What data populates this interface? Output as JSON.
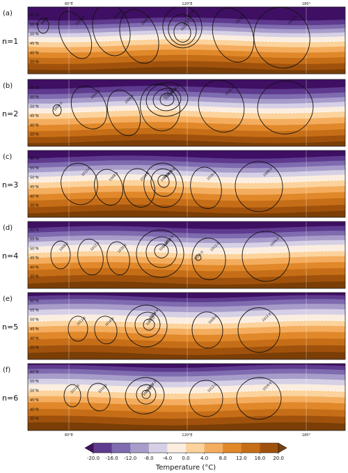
{
  "top_longitudes": [
    "60°E",
    "120°E",
    "180°"
  ],
  "bottom_longitudes": [
    "60°E",
    "120°E",
    "180°"
  ],
  "latitudes": [
    "60°N",
    "55°N",
    "50°N",
    "45°N",
    "40°N",
    "35°N"
  ],
  "panels": [
    {
      "letter": "(a)",
      "label": "n=1",
      "contours": [
        "996.0",
        "1000.0",
        "1004.0",
        "1008.0",
        "1012.0",
        "1016.0",
        "1012.0",
        "1020.0",
        "1016.0"
      ]
    },
    {
      "letter": "(b)",
      "label": "n=2",
      "contours": [
        "1000.0",
        "1004.0",
        "1008.0",
        "1012.0",
        "1016.0",
        "1020.0",
        "1012.0",
        "1016.0"
      ]
    },
    {
      "letter": "(c)",
      "label": "n=3",
      "contours": [
        "1012.0",
        "1008.0",
        "1016.0",
        "1020.0",
        "1004.0",
        "1000.0",
        "1016.0",
        "1008.0"
      ]
    },
    {
      "letter": "(d)",
      "label": "n=4",
      "contours": [
        "1008.0",
        "1012.0",
        "1020.0",
        "1008.0",
        "1000.0",
        "1004.0",
        "1016.0",
        "1012.0",
        "1004.0"
      ]
    },
    {
      "letter": "(e)",
      "label": "n=5",
      "contours": [
        "1012.0",
        "1016.0",
        "1008.0",
        "1004.0",
        "1000.0",
        "1008.0",
        "1012.0"
      ]
    },
    {
      "letter": "(f)",
      "label": "n=6",
      "contours": [
        "1012.0",
        "1016.0",
        "1008.0",
        "1004.0",
        "1000.0",
        "1012.0",
        "1016.0"
      ]
    }
  ],
  "colorbar": {
    "title": "Temperature (°C)",
    "ticks": [
      "-20.0",
      "-16.0",
      "-12.0",
      "-8.0",
      "-4.0",
      "0.0",
      "4.0",
      "8.0",
      "12.0",
      "16.0",
      "20.0"
    ],
    "colors": [
      "#3f0f63",
      "#5e3b8f",
      "#7f6baf",
      "#a89cca",
      "#d6d0e6",
      "#fbeee0",
      "#fcd39c",
      "#f4ad5e",
      "#e0882a",
      "#c66e17",
      "#a0520c",
      "#7a3e06"
    ]
  }
}
